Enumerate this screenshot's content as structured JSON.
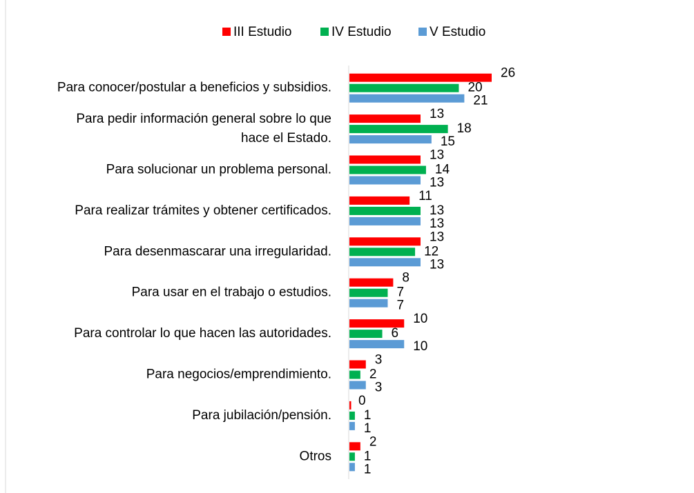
{
  "chart_data": {
    "type": "hbar",
    "categories": [
      "Para conocer/postular a beneficios y subsidios.",
      "Para pedir información general sobre lo que hace el Estado.",
      "Para solucionar un problema personal.",
      "Para realizar trámites y obtener certificados.",
      "Para desenmascarar una irregularidad.",
      "Para usar en el trabajo o estudios.",
      "Para controlar lo que hacen las autoridades.",
      "Para negocios/emprendimiento.",
      "Para jubilación/pensión.",
      "Otros"
    ],
    "series": [
      {
        "name": "III Estudio",
        "color": "#ff0000",
        "values": [
          26,
          13,
          13,
          11,
          13,
          8,
          10,
          3,
          0,
          2
        ]
      },
      {
        "name": "IV Estudio",
        "color": "#00b050",
        "values": [
          20,
          18,
          14,
          13,
          12,
          7,
          6,
          2,
          1,
          1
        ]
      },
      {
        "name": "V Estudio",
        "color": "#5b9bd5",
        "values": [
          21,
          15,
          13,
          13,
          13,
          7,
          10,
          3,
          1,
          1
        ]
      }
    ],
    "legend": "top"
  }
}
